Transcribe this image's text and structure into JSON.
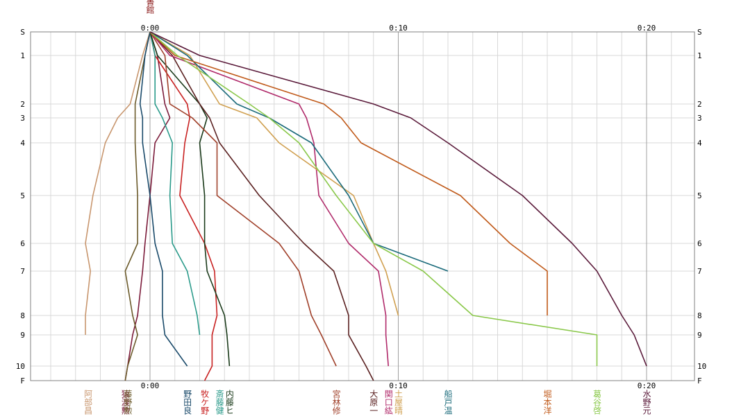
{
  "chart_data": {
    "type": "line",
    "x_unit": "minutes",
    "x_range": [
      -5.5,
      21.5
    ],
    "x_ticks": [
      {
        "value": 0,
        "label": "0:00"
      },
      {
        "value": 10,
        "label": "0:10"
      },
      {
        "value": 20,
        "label": "0:20"
      }
    ],
    "y_categories": [
      "S",
      "1",
      "2",
      "3",
      "4",
      "5",
      "6",
      "7",
      "8",
      "9",
      "10",
      "F"
    ],
    "top_marker": {
      "label": "図書館",
      "value": 0,
      "color": "#8b1a1a"
    },
    "grid": true,
    "series": [
      {
        "name": "阿部昌",
        "color": "#c8966e",
        "label_at": -2.5,
        "x": [
          0,
          -0.3,
          -0.8,
          -1.3,
          -1.8,
          -2.3,
          -2.6,
          -2.4,
          -2.6,
          -2.6
        ]
      },
      {
        "name": "猿渡勲",
        "color": "#7b1b3a",
        "label_at": -1.0,
        "x": [
          0,
          0.3,
          0.6,
          0.8,
          0.2,
          0,
          -0.2,
          -0.3,
          -0.5,
          -0.7,
          -0.9,
          -1.0
        ]
      },
      {
        "name": "藤野勲",
        "color": "#6b5a2a",
        "label_at": -0.9,
        "x": [
          0,
          -0.2,
          -0.6,
          -0.6,
          -0.6,
          -0.5,
          -0.5,
          -1.0,
          -0.7,
          -0.5,
          -0.9,
          -1.0
        ]
      },
      {
        "name": "野田良",
        "color": "#1a4a6a",
        "label_at": 1.5,
        "x": [
          0,
          -0.2,
          -0.4,
          -0.3,
          -0.3,
          0,
          0.2,
          0.5,
          0.5,
          0.6,
          1.5
        ]
      },
      {
        "name": "牧ケ野",
        "color": "#c82020",
        "label_at": 2.2,
        "x": [
          0,
          0.2,
          1.5,
          1.6,
          1.4,
          1.2,
          2.2,
          2.6,
          2.7,
          2.5,
          2.5,
          2.2
        ]
      },
      {
        "name": "斎藤健",
        "color": "#2a9a8a",
        "label_at": 2.8,
        "x": [
          0,
          0.2,
          0.2,
          0.5,
          0.9,
          0.8,
          0.9,
          1.5,
          1.9,
          2.0
        ]
      },
      {
        "name": "内藤ヒ",
        "color": "#1a3a1a",
        "label_at": 3.2,
        "x": [
          0,
          0.3,
          2.0,
          2.3,
          2.0,
          2.2,
          2.2,
          2.3,
          3.0,
          3.1,
          3.2
        ]
      },
      {
        "name": "宮林修",
        "color": "#a0402a",
        "label_at": 7.5,
        "x": [
          0,
          0.6,
          0.8,
          1.7,
          2.7,
          2.7,
          5.2,
          6.0,
          6.5,
          6.9,
          7.5
        ]
      },
      {
        "name": "大原一",
        "color": "#5a2020",
        "label_at": 9.0,
        "x": [
          0,
          0.9,
          2.0,
          2.4,
          2.8,
          4.4,
          6.2,
          7.4,
          8.0,
          8.0,
          8.7,
          9.0
        ]
      },
      {
        "name": "関口紘",
        "color": "#b02a6a",
        "label_at": 9.6,
        "x": [
          0,
          0.8,
          6.0,
          6.3,
          6.6,
          6.8,
          8.0,
          9.2,
          9.5,
          9.5,
          9.6
        ]
      },
      {
        "name": "土屋晴",
        "color": "#d0a050",
        "label_at": 10.0,
        "x": [
          0,
          1.6,
          2.8,
          4.3,
          5.2,
          8.2,
          9.0,
          9.5,
          10.0
        ]
      },
      {
        "name": "船戸温",
        "color": "#1a6a7a",
        "label_at": 12.0,
        "x": [
          0,
          1.5,
          3.5,
          4.8,
          6.5,
          8.0,
          9.0,
          12.0
        ]
      },
      {
        "name": "堀本洋",
        "color": "#c05a1a",
        "label_at": 16.0,
        "x": [
          0,
          1.0,
          7.0,
          7.7,
          8.5,
          12.5,
          14.5,
          16.0,
          16.0
        ]
      },
      {
        "name": "葛谷啓",
        "color": "#8ac84a",
        "label_at": 18.0,
        "x": [
          0,
          1.1,
          4.0,
          4.8,
          6.0,
          7.5,
          9.0,
          11.0,
          13.0,
          18.0,
          18.0
        ]
      },
      {
        "name": "水野元",
        "color": "#5a1a3a",
        "label_at": 20.0,
        "x": [
          0,
          2.0,
          9.0,
          10.5,
          12.0,
          15.0,
          17.0,
          18.0,
          19.0,
          19.5,
          20.0
        ]
      }
    ]
  }
}
